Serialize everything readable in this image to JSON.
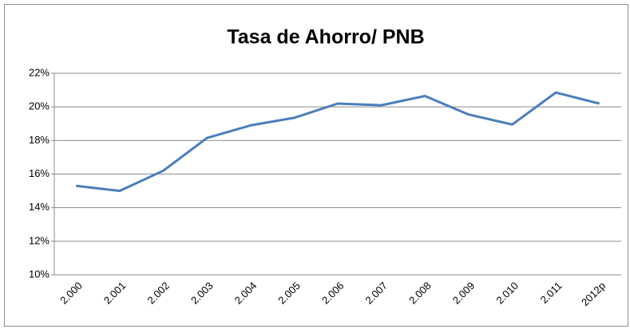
{
  "chart_data": {
    "type": "line",
    "title": "Tasa de Ahorro/ PNB",
    "categories": [
      "2.000",
      "2.001",
      "2.002",
      "2.003",
      "2.004",
      "2.005",
      "2.006",
      "2.007",
      "2.008",
      "2.009",
      "2.010",
      "2.011",
      "2012p"
    ],
    "series": [
      {
        "name": "Tasa de Ahorro/ PNB",
        "color": "#4a7ebb",
        "values": [
          15.3,
          15.0,
          16.2,
          18.15,
          18.9,
          19.35,
          20.2,
          20.1,
          20.65,
          19.55,
          18.95,
          20.85,
          20.2
        ]
      }
    ],
    "ylim": [
      10,
      22
    ],
    "yticks": [
      {
        "value": 10,
        "label": "10%"
      },
      {
        "value": 12,
        "label": "12%"
      },
      {
        "value": 14,
        "label": "14%"
      },
      {
        "value": 16,
        "label": "16%"
      },
      {
        "value": 18,
        "label": "18%"
      },
      {
        "value": 20,
        "label": "20%"
      },
      {
        "value": 22,
        "label": "22%"
      }
    ],
    "grid": true
  }
}
